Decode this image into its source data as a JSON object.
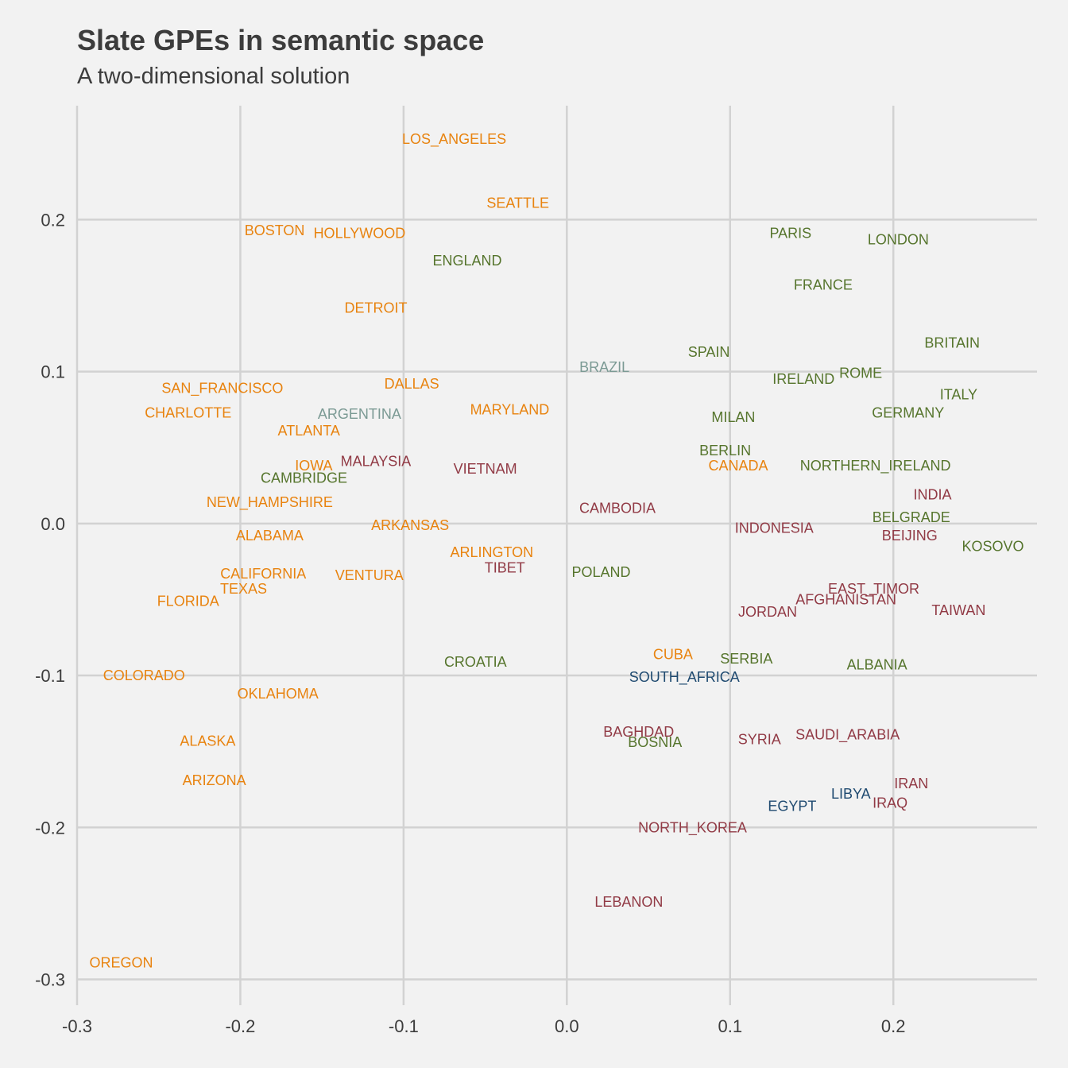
{
  "chart_data": {
    "type": "scatter",
    "title": "Slate GPEs in semantic space",
    "subtitle": "A two-dimensional solution",
    "xlabel": "",
    "ylabel": "",
    "xlim": [
      -0.3,
      0.288
    ],
    "ylim": [
      -0.317,
      0.275
    ],
    "x_ticks": [
      "-0.3",
      "-0.2",
      "-0.1",
      "0.0",
      "0.1",
      "0.2"
    ],
    "y_ticks": [
      "0.2",
      "0.1",
      "0.0",
      "-0.1",
      "-0.2",
      "-0.3"
    ],
    "grid": true,
    "colors": {
      "us": "#e8830f",
      "europe": "#56752d",
      "asia_mideast": "#913a45",
      "latam": "#7b9a94",
      "africa": "#1f4a70"
    },
    "points": [
      {
        "label": "LOS_ANGELES",
        "x": -0.069,
        "y": 0.253,
        "group": "us"
      },
      {
        "label": "SEATTLE",
        "x": -0.03,
        "y": 0.211,
        "group": "us"
      },
      {
        "label": "BOSTON",
        "x": -0.179,
        "y": 0.193,
        "group": "us"
      },
      {
        "label": "HOLLYWOOD",
        "x": -0.127,
        "y": 0.191,
        "group": "us"
      },
      {
        "label": "ENGLAND",
        "x": -0.061,
        "y": 0.173,
        "group": "europe"
      },
      {
        "label": "DETROIT",
        "x": -0.117,
        "y": 0.142,
        "group": "us"
      },
      {
        "label": "PARIS",
        "x": 0.137,
        "y": 0.191,
        "group": "europe"
      },
      {
        "label": "LONDON",
        "x": 0.203,
        "y": 0.187,
        "group": "europe"
      },
      {
        "label": "FRANCE",
        "x": 0.157,
        "y": 0.157,
        "group": "europe"
      },
      {
        "label": "BRITAIN",
        "x": 0.236,
        "y": 0.119,
        "group": "europe"
      },
      {
        "label": "SPAIN",
        "x": 0.087,
        "y": 0.113,
        "group": "europe"
      },
      {
        "label": "BRAZIL",
        "x": 0.023,
        "y": 0.103,
        "group": "latam"
      },
      {
        "label": "ROME",
        "x": 0.18,
        "y": 0.099,
        "group": "europe"
      },
      {
        "label": "IRELAND",
        "x": 0.145,
        "y": 0.095,
        "group": "europe"
      },
      {
        "label": "ITALY",
        "x": 0.24,
        "y": 0.085,
        "group": "europe"
      },
      {
        "label": "SAN_FRANCISCO",
        "x": -0.211,
        "y": 0.089,
        "group": "us"
      },
      {
        "label": "DALLAS",
        "x": -0.095,
        "y": 0.092,
        "group": "us"
      },
      {
        "label": "CHARLOTTE",
        "x": -0.232,
        "y": 0.073,
        "group": "us"
      },
      {
        "label": "ARGENTINA",
        "x": -0.127,
        "y": 0.072,
        "group": "latam"
      },
      {
        "label": "MARYLAND",
        "x": -0.035,
        "y": 0.075,
        "group": "us"
      },
      {
        "label": "GERMANY",
        "x": 0.209,
        "y": 0.073,
        "group": "europe"
      },
      {
        "label": "MILAN",
        "x": 0.102,
        "y": 0.07,
        "group": "europe"
      },
      {
        "label": "ATLANTA",
        "x": -0.158,
        "y": 0.061,
        "group": "us"
      },
      {
        "label": "BERLIN",
        "x": 0.097,
        "y": 0.048,
        "group": "europe"
      },
      {
        "label": "CANADA",
        "x": 0.105,
        "y": 0.038,
        "group": "us"
      },
      {
        "label": "NORTHERN_IRELAND",
        "x": 0.189,
        "y": 0.038,
        "group": "europe"
      },
      {
        "label": "IOWA",
        "x": -0.155,
        "y": 0.038,
        "group": "us"
      },
      {
        "label": "MALAYSIA",
        "x": -0.117,
        "y": 0.041,
        "group": "asia_mideast"
      },
      {
        "label": "VIETNAM",
        "x": -0.05,
        "y": 0.036,
        "group": "asia_mideast"
      },
      {
        "label": "CAMBRIDGE",
        "x": -0.161,
        "y": 0.03,
        "group": "europe"
      },
      {
        "label": "NEW_HAMPSHIRE",
        "x": -0.182,
        "y": 0.014,
        "group": "us"
      },
      {
        "label": "INDIA",
        "x": 0.224,
        "y": 0.019,
        "group": "asia_mideast"
      },
      {
        "label": "CAMBODIA",
        "x": 0.031,
        "y": 0.01,
        "group": "asia_mideast"
      },
      {
        "label": "BELGRADE",
        "x": 0.211,
        "y": 0.004,
        "group": "europe"
      },
      {
        "label": "ARKANSAS",
        "x": -0.096,
        "y": -0.001,
        "group": "us"
      },
      {
        "label": "INDONESIA",
        "x": 0.127,
        "y": -0.003,
        "group": "asia_mideast"
      },
      {
        "label": "BEIJING",
        "x": 0.21,
        "y": -0.008,
        "group": "asia_mideast"
      },
      {
        "label": "KOSOVO",
        "x": 0.261,
        "y": -0.015,
        "group": "europe"
      },
      {
        "label": "ALABAMA",
        "x": -0.182,
        "y": -0.008,
        "group": "us"
      },
      {
        "label": "ARLINGTON",
        "x": -0.046,
        "y": -0.019,
        "group": "us"
      },
      {
        "label": "TIBET",
        "x": -0.038,
        "y": -0.029,
        "group": "asia_mideast"
      },
      {
        "label": "POLAND",
        "x": 0.021,
        "y": -0.032,
        "group": "europe"
      },
      {
        "label": "CALIFORNIA",
        "x": -0.186,
        "y": -0.033,
        "group": "us"
      },
      {
        "label": "VENTURA",
        "x": -0.121,
        "y": -0.034,
        "group": "us"
      },
      {
        "label": "TEXAS",
        "x": -0.198,
        "y": -0.043,
        "group": "us"
      },
      {
        "label": "EAST_TIMOR",
        "x": 0.188,
        "y": -0.043,
        "group": "asia_mideast"
      },
      {
        "label": "AFGHANISTAN",
        "x": 0.171,
        "y": -0.05,
        "group": "asia_mideast"
      },
      {
        "label": "FLORIDA",
        "x": -0.232,
        "y": -0.051,
        "group": "us"
      },
      {
        "label": "JORDAN",
        "x": 0.123,
        "y": -0.058,
        "group": "asia_mideast"
      },
      {
        "label": "TAIWAN",
        "x": 0.24,
        "y": -0.057,
        "group": "asia_mideast"
      },
      {
        "label": "CUBA",
        "x": 0.065,
        "y": -0.086,
        "group": "us"
      },
      {
        "label": "SERBIA",
        "x": 0.11,
        "y": -0.089,
        "group": "europe"
      },
      {
        "label": "CROATIA",
        "x": -0.056,
        "y": -0.091,
        "group": "europe"
      },
      {
        "label": "ALBANIA",
        "x": 0.19,
        "y": -0.093,
        "group": "europe"
      },
      {
        "label": "SOUTH_AFRICA",
        "x": 0.072,
        "y": -0.101,
        "group": "africa"
      },
      {
        "label": "COLORADO",
        "x": -0.259,
        "y": -0.1,
        "group": "us"
      },
      {
        "label": "OKLAHOMA",
        "x": -0.177,
        "y": -0.112,
        "group": "us"
      },
      {
        "label": "BAGHDAD",
        "x": 0.044,
        "y": -0.137,
        "group": "asia_mideast"
      },
      {
        "label": "BOSNIA",
        "x": 0.054,
        "y": -0.144,
        "group": "europe"
      },
      {
        "label": "SYRIA",
        "x": 0.118,
        "y": -0.142,
        "group": "asia_mideast"
      },
      {
        "label": "SAUDI_ARABIA",
        "x": 0.172,
        "y": -0.139,
        "group": "asia_mideast"
      },
      {
        "label": "ALASKA",
        "x": -0.22,
        "y": -0.143,
        "group": "us"
      },
      {
        "label": "ARIZONA",
        "x": -0.216,
        "y": -0.169,
        "group": "us"
      },
      {
        "label": "IRAN",
        "x": 0.211,
        "y": -0.171,
        "group": "asia_mideast"
      },
      {
        "label": "LIBYA",
        "x": 0.174,
        "y": -0.178,
        "group": "africa"
      },
      {
        "label": "IRAQ",
        "x": 0.198,
        "y": -0.184,
        "group": "asia_mideast"
      },
      {
        "label": "EGYPT",
        "x": 0.138,
        "y": -0.186,
        "group": "africa"
      },
      {
        "label": "NORTH_KOREA",
        "x": 0.077,
        "y": -0.2,
        "group": "asia_mideast"
      },
      {
        "label": "LEBANON",
        "x": 0.038,
        "y": -0.249,
        "group": "asia_mideast"
      },
      {
        "label": "OREGON",
        "x": -0.273,
        "y": -0.289,
        "group": "us"
      }
    ]
  }
}
